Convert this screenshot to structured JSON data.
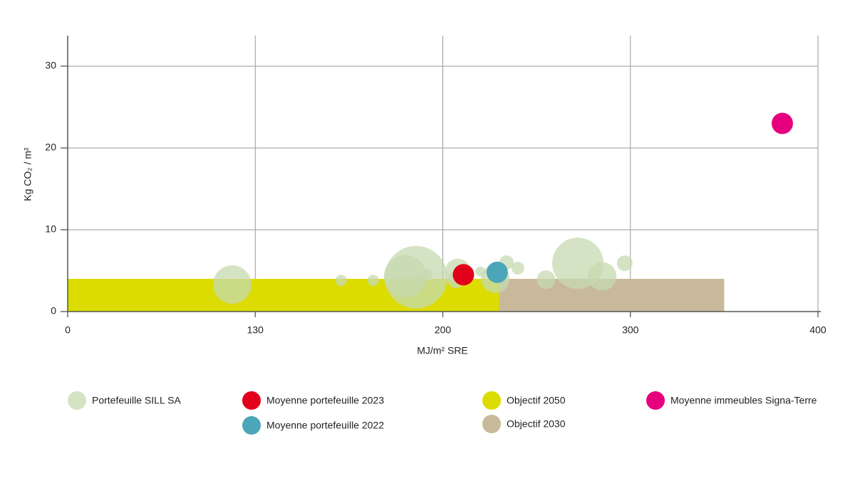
{
  "chart_data": {
    "type": "bubble",
    "x_label": "MJ/m² SRE",
    "y_label": "Kg CO₂ / m²",
    "xlim": [
      0,
      400
    ],
    "xticks": [
      0,
      130,
      200,
      300,
      400
    ],
    "ylim": [
      0,
      34
    ],
    "yticks": [
      0,
      10,
      20,
      30
    ],
    "grid": true,
    "series": [
      {
        "name": "Portefeuille SILL SA",
        "type": "bubble",
        "color": "#c5dab0",
        "x": [
          114,
          162,
          174,
          190,
          186,
          194,
          191,
          208,
          207,
          220,
          228,
          234,
          240,
          255,
          272,
          285,
          297
        ],
        "values": [
          3.3,
          3.8,
          3.8,
          4.2,
          4.3,
          4.5,
          4,
          4.9,
          3.9,
          4.9,
          4,
          6,
          5.3,
          3.9,
          5.9,
          4.3,
          5.9
        ],
        "sizes": [
          27,
          8,
          8,
          44,
          30,
          8,
          7,
          18,
          12,
          7,
          20,
          10,
          9,
          13,
          36,
          20,
          11
        ]
      },
      {
        "name": "Moyenne portefeuille 2023",
        "type": "bubble",
        "color": "#e2001a",
        "x": [
          211
        ],
        "values": [
          4.5
        ],
        "sizes": [
          15
        ]
      },
      {
        "name": "Moyenne portefeuille 2022",
        "type": "bubble",
        "color": "#4aa6b8",
        "x": [
          229
        ],
        "values": [
          4.8
        ],
        "sizes": [
          15
        ]
      },
      {
        "name": "Objectif 2050",
        "type": "region",
        "color": "#dcdc00",
        "x_range": [
          0,
          230
        ],
        "y_range": [
          0,
          4
        ]
      },
      {
        "name": "Objectif 2030",
        "type": "region",
        "color": "#c9b99b",
        "x_range": [
          230,
          350
        ],
        "y_range": [
          0,
          4
        ]
      },
      {
        "name": "Moyenne immeubles Signa-Terre",
        "type": "bubble",
        "color": "#e6007e",
        "x": [
          381
        ],
        "values": [
          23
        ],
        "sizes": [
          15
        ]
      }
    ]
  }
}
